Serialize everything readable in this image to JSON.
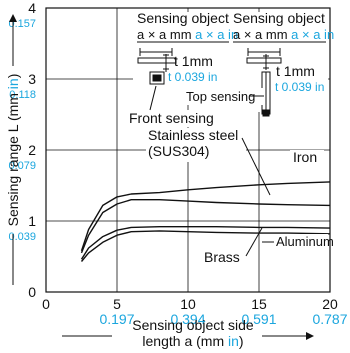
{
  "chart_data": {
    "type": "line",
    "xlabel": "Sensing object side",
    "xlabel2_pre": "length a (mm ",
    "xlabel2_in": "in",
    "xlabel2_post": ")",
    "ylabel_pre": "Sensing range L (mm ",
    "ylabel_in": "in",
    "ylabel_post": ")",
    "xlim": [
      0,
      20
    ],
    "ylim": [
      0,
      4
    ],
    "x_ticks": [
      {
        "v": 0,
        "mm": "0",
        "inch": ""
      },
      {
        "v": 5,
        "mm": "5",
        "inch": "0.197"
      },
      {
        "v": 10,
        "mm": "10",
        "inch": "0.394"
      },
      {
        "v": 15,
        "mm": "15",
        "inch": "0.591"
      },
      {
        "v": 20,
        "mm": "20",
        "inch": "0.787"
      }
    ],
    "y_ticks": [
      {
        "v": 1,
        "mm": "1",
        "inch": "0.039"
      },
      {
        "v": 2,
        "mm": "2",
        "inch": "0.079"
      },
      {
        "v": 3,
        "mm": "3",
        "inch": "0.118"
      },
      {
        "v": 4,
        "mm": "4",
        "inch": "0.157"
      }
    ],
    "grid": true,
    "series": [
      {
        "name": "Iron",
        "x": [
          2.5,
          3,
          4,
          5,
          6,
          8,
          10,
          12,
          15,
          17,
          20
        ],
        "y": [
          0.58,
          0.88,
          1.22,
          1.34,
          1.38,
          1.4,
          1.44,
          1.47,
          1.51,
          1.53,
          1.55
        ]
      },
      {
        "name": "Stainless steel (SUS304)",
        "x": [
          2.5,
          3,
          4,
          5,
          6,
          8,
          10,
          12,
          15,
          17,
          20
        ],
        "y": [
          0.55,
          0.8,
          1.12,
          1.24,
          1.3,
          1.3,
          1.28,
          1.26,
          1.24,
          1.23,
          1.22
        ]
      },
      {
        "name": "Aluminum",
        "x": [
          2.5,
          3,
          4,
          5,
          6,
          8,
          10,
          12,
          15,
          17,
          20
        ],
        "y": [
          0.46,
          0.62,
          0.78,
          0.87,
          0.91,
          0.92,
          0.92,
          0.92,
          0.91,
          0.91,
          0.9
        ]
      },
      {
        "name": "Brass",
        "x": [
          2.5,
          3,
          4,
          5,
          6,
          8,
          10,
          12,
          15,
          17,
          20
        ],
        "y": [
          0.43,
          0.55,
          0.7,
          0.8,
          0.85,
          0.86,
          0.85,
          0.84,
          0.83,
          0.83,
          0.82
        ]
      }
    ],
    "annotations": {
      "obj_left": "Sensing object",
      "obj_right": "Sensing object",
      "dim_mm": "a × a mm",
      "dim_in": "a × a in",
      "thick_mm": "t 1mm",
      "thick_in": "t 0.039 in",
      "front": "Front sensing",
      "top": "Top sensing",
      "stainless_1": "Stainless steel",
      "stainless_2": "(SUS304)",
      "iron": "Iron",
      "brass": "Brass",
      "aluminum": "Aluminum"
    }
  }
}
